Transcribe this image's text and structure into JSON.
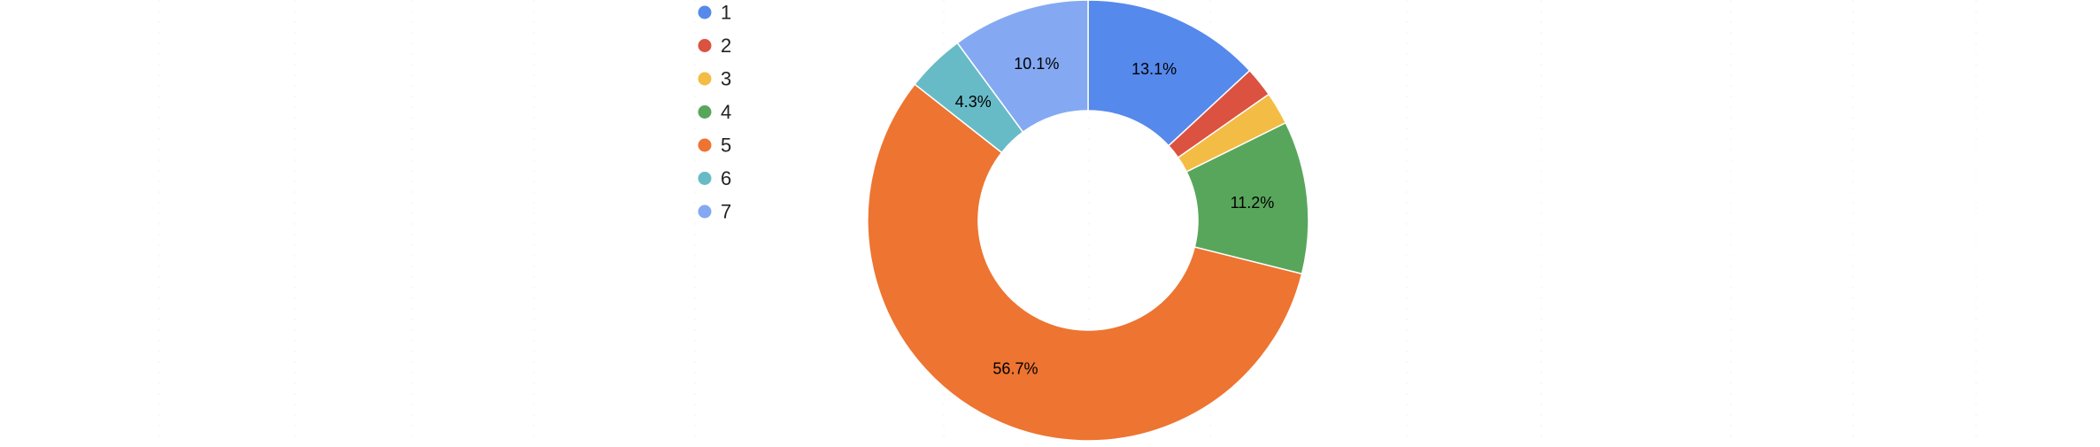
{
  "chart_data": {
    "type": "pie",
    "donut": true,
    "legend_position": "top-left",
    "grid": false,
    "slices": [
      {
        "label": "1",
        "value": 13.1,
        "value_label": "13.1%",
        "color": "#5689EC"
      },
      {
        "label": "2",
        "value": 2.2,
        "value_label": "",
        "color": "#DB5241"
      },
      {
        "label": "3",
        "value": 2.4,
        "value_label": "",
        "color": "#F3BC44"
      },
      {
        "label": "4",
        "value": 11.2,
        "value_label": "11.2%",
        "color": "#58A65C"
      },
      {
        "label": "5",
        "value": 56.7,
        "value_label": "56.7%",
        "color": "#ED7431"
      },
      {
        "label": "6",
        "value": 4.3,
        "value_label": "4.3%",
        "color": "#67BBC6"
      },
      {
        "label": "7",
        "value": 10.1,
        "value_label": "10.1%",
        "color": "#84A9F2"
      }
    ]
  }
}
